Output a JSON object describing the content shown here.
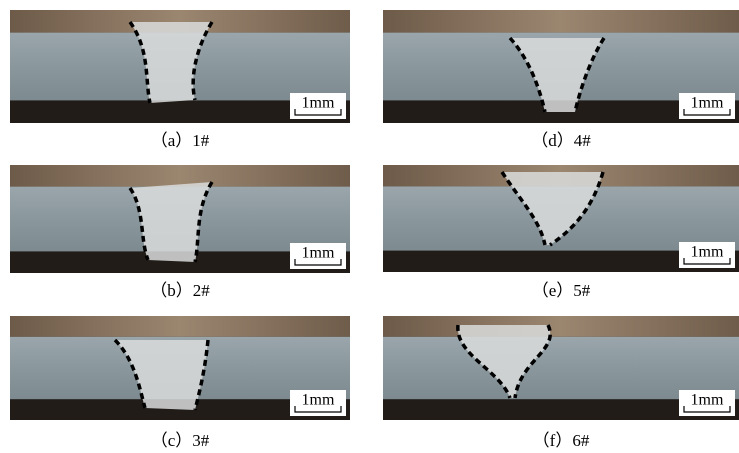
{
  "panels": [
    {
      "caption": "（a）1#",
      "scale_bar": "1mm"
    },
    {
      "caption": "（b）2#",
      "scale_bar": "1mm"
    },
    {
      "caption": "（c）3#",
      "scale_bar": "1mm"
    },
    {
      "caption": "（d）4#",
      "scale_bar": "1mm"
    },
    {
      "caption": "（e）5#",
      "scale_bar": "1mm"
    },
    {
      "caption": "（f）6#",
      "scale_bar": "1mm"
    }
  ]
}
